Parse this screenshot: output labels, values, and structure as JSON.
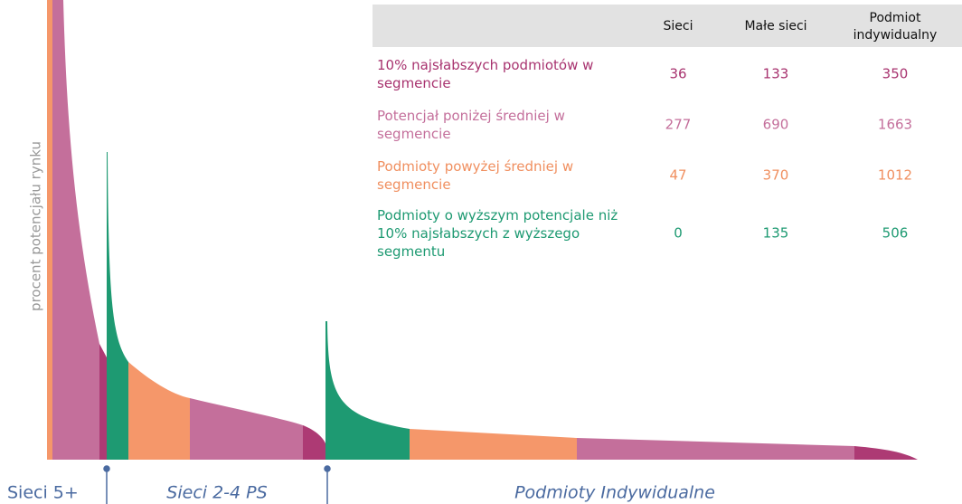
{
  "axis_label": "procent potencjału rynku",
  "segments": [
    "Sieci 5+",
    "Sieci 2-4 PS",
    "Podmioty Indywidualne"
  ],
  "table": {
    "columns": [
      "Sieci",
      "Małe sieci",
      "Podmiot indywidualny"
    ],
    "rows": [
      {
        "label": "10% najsłabszych podmiotów w segmencie",
        "color": "#a8336f",
        "values": [
          36,
          133,
          350
        ]
      },
      {
        "label": "Potencjał poniżej średniej w segmencie",
        "color": "#c46f9b",
        "values": [
          277,
          690,
          1663
        ]
      },
      {
        "label": "Podmioty powyżej średniej w segmencie",
        "color": "#f08f5f",
        "values": [
          47,
          370,
          1012
        ]
      },
      {
        "label": "Podmioty o wyższym potencjale niż 10% najsłabszych z wyższego segmentu",
        "color": "#1e9a72",
        "values": [
          0,
          135,
          506
        ]
      }
    ]
  }
}
